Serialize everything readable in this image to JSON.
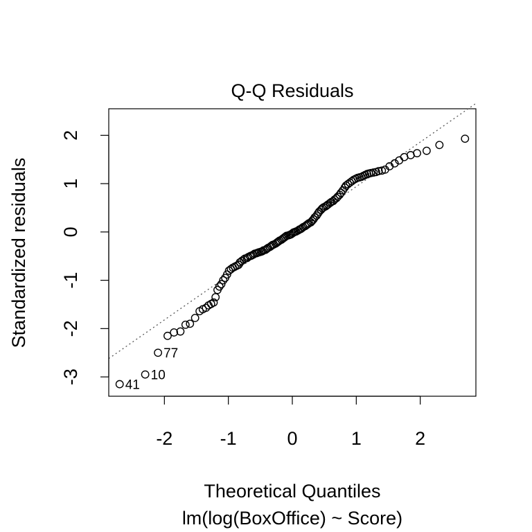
{
  "chart_data": {
    "type": "scatter",
    "title": "Q-Q Residuals",
    "xlabel": "Theoretical Quantiles",
    "subtitle": "lm(log(BoxOffice) ~ Score)",
    "ylabel": "Standardized residuals",
    "xlim": [
      -2.87,
      2.87
    ],
    "ylim": [
      -3.4,
      2.55
    ],
    "x_ticks": [
      -2,
      -1,
      0,
      1,
      2
    ],
    "x_tick_labels": [
      "-2",
      "-1",
      "0",
      "1",
      "2"
    ],
    "y_ticks": [
      -3,
      -2,
      -1,
      0,
      1,
      2
    ],
    "y_tick_labels": [
      "-3",
      "-2",
      "-1",
      "0",
      "1",
      "2"
    ],
    "reference_line": {
      "intercept": 0.02,
      "slope": 0.92,
      "style": "dotted"
    },
    "grid": false,
    "labeled_points": [
      {
        "label": "41",
        "x": -2.7,
        "y": -3.15
      },
      {
        "label": "10",
        "x": -2.3,
        "y": -2.95
      },
      {
        "label": "77",
        "x": -2.1,
        "y": -2.5
      }
    ],
    "points": [
      [
        -2.7,
        -3.15
      ],
      [
        -2.3,
        -2.95
      ],
      [
        -2.1,
        -2.5
      ],
      [
        -1.95,
        -2.15
      ],
      [
        -1.85,
        -2.08
      ],
      [
        -1.75,
        -2.06
      ],
      [
        -1.67,
        -1.92
      ],
      [
        -1.6,
        -1.9
      ],
      [
        -1.52,
        -1.78
      ],
      [
        -1.45,
        -1.64
      ],
      [
        -1.4,
        -1.6
      ],
      [
        -1.35,
        -1.57
      ],
      [
        -1.31,
        -1.52
      ],
      [
        -1.27,
        -1.49
      ],
      [
        -1.23,
        -1.46
      ],
      [
        -1.2,
        -1.35
      ],
      [
        -1.17,
        -1.2
      ],
      [
        -1.14,
        -1.13
      ],
      [
        -1.11,
        -1.08
      ],
      [
        -1.08,
        -1.0
      ],
      [
        -1.05,
        -0.95
      ],
      [
        -1.02,
        -0.88
      ],
      [
        -0.99,
        -0.8
      ],
      [
        -0.96,
        -0.77
      ],
      [
        -0.93,
        -0.74
      ],
      [
        -0.9,
        -0.72
      ],
      [
        -0.87,
        -0.7
      ],
      [
        -0.84,
        -0.68
      ],
      [
        -0.82,
        -0.63
      ],
      [
        -0.79,
        -0.6
      ],
      [
        -0.76,
        -0.57
      ],
      [
        -0.74,
        -0.55
      ],
      [
        -0.71,
        -0.54
      ],
      [
        -0.69,
        -0.52
      ],
      [
        -0.66,
        -0.5
      ],
      [
        -0.64,
        -0.49
      ],
      [
        -0.61,
        -0.47
      ],
      [
        -0.59,
        -0.45
      ],
      [
        -0.56,
        -0.44
      ],
      [
        -0.54,
        -0.43
      ],
      [
        -0.52,
        -0.42
      ],
      [
        -0.49,
        -0.41
      ],
      [
        -0.47,
        -0.4
      ],
      [
        -0.45,
        -0.38
      ],
      [
        -0.42,
        -0.37
      ],
      [
        -0.4,
        -0.35
      ],
      [
        -0.38,
        -0.33
      ],
      [
        -0.35,
        -0.31
      ],
      [
        -0.33,
        -0.29
      ],
      [
        -0.31,
        -0.27
      ],
      [
        -0.29,
        -0.26
      ],
      [
        -0.26,
        -0.24
      ],
      [
        -0.24,
        -0.22
      ],
      [
        -0.22,
        -0.2
      ],
      [
        -0.2,
        -0.18
      ],
      [
        -0.17,
        -0.16
      ],
      [
        -0.15,
        -0.14
      ],
      [
        -0.13,
        -0.12
      ],
      [
        -0.11,
        -0.1
      ],
      [
        -0.09,
        -0.08
      ],
      [
        -0.06,
        -0.07
      ],
      [
        -0.04,
        -0.06
      ],
      [
        -0.02,
        -0.05
      ],
      [
        0.0,
        -0.03
      ],
      [
        0.02,
        -0.01
      ],
      [
        0.04,
        0.0
      ],
      [
        0.06,
        0.01
      ],
      [
        0.09,
        0.03
      ],
      [
        0.11,
        0.05
      ],
      [
        0.13,
        0.06
      ],
      [
        0.15,
        0.08
      ],
      [
        0.17,
        0.1
      ],
      [
        0.2,
        0.12
      ],
      [
        0.22,
        0.14
      ],
      [
        0.24,
        0.16
      ],
      [
        0.26,
        0.18
      ],
      [
        0.29,
        0.2
      ],
      [
        0.31,
        0.23
      ],
      [
        0.33,
        0.26
      ],
      [
        0.35,
        0.3
      ],
      [
        0.38,
        0.34
      ],
      [
        0.4,
        0.38
      ],
      [
        0.42,
        0.42
      ],
      [
        0.45,
        0.46
      ],
      [
        0.47,
        0.49
      ],
      [
        0.49,
        0.51
      ],
      [
        0.52,
        0.53
      ],
      [
        0.54,
        0.55
      ],
      [
        0.56,
        0.57
      ],
      [
        0.59,
        0.6
      ],
      [
        0.61,
        0.62
      ],
      [
        0.64,
        0.64
      ],
      [
        0.66,
        0.67
      ],
      [
        0.69,
        0.7
      ],
      [
        0.71,
        0.73
      ],
      [
        0.74,
        0.77
      ],
      [
        0.76,
        0.81
      ],
      [
        0.79,
        0.86
      ],
      [
        0.82,
        0.92
      ],
      [
        0.84,
        0.96
      ],
      [
        0.87,
        0.99
      ],
      [
        0.9,
        1.02
      ],
      [
        0.93,
        1.05
      ],
      [
        0.96,
        1.08
      ],
      [
        0.99,
        1.1
      ],
      [
        1.02,
        1.12
      ],
      [
        1.05,
        1.13
      ],
      [
        1.08,
        1.14
      ],
      [
        1.11,
        1.16
      ],
      [
        1.14,
        1.18
      ],
      [
        1.17,
        1.2
      ],
      [
        1.2,
        1.21
      ],
      [
        1.23,
        1.22
      ],
      [
        1.27,
        1.23
      ],
      [
        1.31,
        1.24
      ],
      [
        1.35,
        1.26
      ],
      [
        1.4,
        1.27
      ],
      [
        1.45,
        1.29
      ],
      [
        1.52,
        1.36
      ],
      [
        1.6,
        1.42
      ],
      [
        1.67,
        1.48
      ],
      [
        1.75,
        1.55
      ],
      [
        1.85,
        1.59
      ],
      [
        1.95,
        1.63
      ],
      [
        2.1,
        1.68
      ],
      [
        2.3,
        1.8
      ],
      [
        2.7,
        1.93
      ]
    ]
  }
}
